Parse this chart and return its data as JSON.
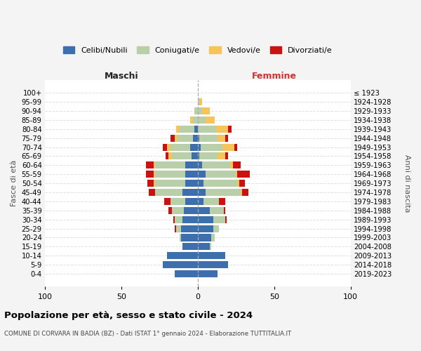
{
  "age_groups_bottom_to_top": [
    "0-4",
    "5-9",
    "10-14",
    "15-19",
    "20-24",
    "25-29",
    "30-34",
    "35-39",
    "40-44",
    "45-49",
    "50-54",
    "55-59",
    "60-64",
    "65-69",
    "70-74",
    "75-79",
    "80-84",
    "85-89",
    "90-94",
    "95-99",
    "100+"
  ],
  "birth_years_bottom_to_top": [
    "2019-2023",
    "2014-2018",
    "2009-2013",
    "2004-2008",
    "1999-2003",
    "1994-1998",
    "1989-1993",
    "1984-1988",
    "1979-1983",
    "1974-1978",
    "1969-1973",
    "1964-1968",
    "1959-1963",
    "1954-1958",
    "1949-1953",
    "1944-1948",
    "1939-1943",
    "1934-1938",
    "1929-1933",
    "1924-1928",
    "≤ 1923"
  ],
  "maschi": {
    "celibi": [
      15,
      23,
      20,
      10,
      11,
      11,
      10,
      9,
      8,
      10,
      8,
      8,
      8,
      4,
      5,
      3,
      2,
      0,
      0,
      0,
      0
    ],
    "coniugati": [
      0,
      0,
      0,
      0,
      1,
      3,
      5,
      8,
      10,
      18,
      20,
      20,
      20,
      13,
      13,
      10,
      10,
      3,
      2,
      0,
      0
    ],
    "vedovi": [
      0,
      0,
      0,
      0,
      0,
      0,
      0,
      0,
      0,
      0,
      1,
      1,
      1,
      2,
      2,
      2,
      2,
      2,
      0,
      0,
      0
    ],
    "divorziati": [
      0,
      0,
      0,
      0,
      0,
      1,
      1,
      2,
      4,
      4,
      4,
      5,
      5,
      2,
      3,
      3,
      0,
      0,
      0,
      0,
      0
    ]
  },
  "femmine": {
    "nubili": [
      13,
      20,
      18,
      8,
      9,
      10,
      10,
      8,
      4,
      5,
      4,
      5,
      3,
      1,
      2,
      1,
      0,
      0,
      0,
      0,
      0
    ],
    "coniugate": [
      0,
      0,
      0,
      1,
      2,
      4,
      8,
      9,
      10,
      23,
      22,
      20,
      18,
      12,
      14,
      12,
      12,
      5,
      3,
      1,
      0
    ],
    "vedove": [
      0,
      0,
      0,
      0,
      0,
      0,
      0,
      0,
      0,
      1,
      1,
      1,
      2,
      5,
      8,
      5,
      8,
      6,
      5,
      2,
      0
    ],
    "divorziate": [
      0,
      0,
      0,
      0,
      0,
      0,
      1,
      1,
      4,
      4,
      4,
      8,
      5,
      2,
      2,
      2,
      2,
      0,
      0,
      0,
      0
    ]
  },
  "colors": {
    "celibi": "#3d6fad",
    "coniugati": "#b8cfaa",
    "vedovi": "#f5c55a",
    "divorziati": "#cc1111"
  },
  "xlim": [
    -100,
    100
  ],
  "xticks": [
    -100,
    -50,
    0,
    50,
    100
  ],
  "xticklabels": [
    "100",
    "50",
    "0",
    "50",
    "100"
  ],
  "title": "Popolazione per età, sesso e stato civile - 2024",
  "subtitle": "COMUNE DI CORVARA IN BADIA (BZ) - Dati ISTAT 1° gennaio 2024 - Elaborazione TUTTITALIA.IT",
  "ylabel_left": "Fasce di età",
  "ylabel_right": "Anni di nascita",
  "label_maschi": "Maschi",
  "label_femmine": "Femmine",
  "legend_labels": [
    "Celibi/Nubili",
    "Coniugati/e",
    "Vedovi/e",
    "Divorziati/e"
  ],
  "bg_color": "#f4f4f4",
  "plot_bg_color": "#ffffff"
}
